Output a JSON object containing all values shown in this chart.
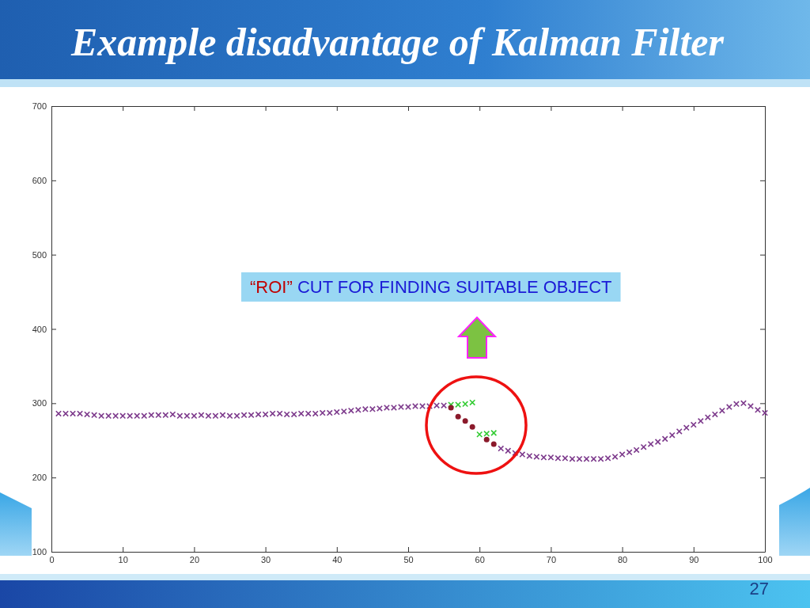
{
  "chart_data": {
    "type": "scatter",
    "title": "Example disadvantage of Kalman Filter",
    "annotations": [
      "“ROI” CUT FOR FINDING SUITABLE OBJECT",
      "27"
    ],
    "xlim": [
      0,
      100
    ],
    "xticks": [
      0,
      10,
      20,
      30,
      40,
      50,
      60,
      70,
      80,
      90,
      100
    ],
    "ylim": [
      100,
      700
    ],
    "yticks": [
      100,
      200,
      300,
      400,
      500,
      600,
      700
    ],
    "marker": "cross",
    "series": [
      {
        "color": "#7d3a8c",
        "x": [
          1,
          2,
          3,
          4,
          5,
          6,
          7,
          8,
          9,
          10,
          11,
          12,
          13,
          14,
          15,
          16,
          17,
          18,
          19,
          20,
          21,
          22,
          23,
          24,
          25,
          26,
          27,
          28,
          29,
          30,
          31,
          32,
          33,
          34,
          35,
          36,
          37,
          38,
          39,
          40,
          41,
          42,
          43,
          44,
          45,
          46,
          47,
          48,
          49,
          50,
          51,
          52,
          53,
          54,
          55,
          63,
          64,
          65,
          66,
          67,
          68,
          69,
          70,
          71,
          72,
          73,
          74,
          75,
          76,
          77,
          78,
          79,
          80,
          81,
          82,
          83,
          84,
          85,
          86,
          87,
          88,
          89,
          90,
          91,
          92,
          93,
          94,
          95,
          96,
          97,
          98,
          99,
          100
        ],
        "values": [
          286,
          286,
          286,
          286,
          285,
          284,
          283,
          283,
          283,
          283,
          283,
          283,
          283,
          284,
          284,
          284,
          285,
          283,
          283,
          283,
          284,
          283,
          283,
          284,
          283,
          283,
          284,
          284,
          285,
          285,
          286,
          286,
          285,
          285,
          286,
          286,
          286,
          287,
          287,
          288,
          289,
          290,
          291,
          292,
          292,
          293,
          294,
          294,
          295,
          295,
          296,
          296,
          296,
          297,
          297,
          239,
          236,
          233,
          231,
          229,
          228,
          227,
          227,
          226,
          226,
          225,
          225,
          225,
          225,
          225,
          226,
          228,
          231,
          234,
          237,
          241,
          245,
          248,
          252,
          257,
          262,
          267,
          271,
          276,
          281,
          285,
          290,
          295,
          299,
          300,
          296,
          291,
          287
        ]
      },
      {
        "color": "#33cc33",
        "x": [
          56,
          57,
          58,
          59,
          60,
          61,
          62
        ],
        "values": [
          298,
          298,
          299,
          301,
          258,
          259,
          260
        ]
      },
      {
        "color": "#8b1a2b",
        "marker": "circle",
        "x": [
          56,
          57,
          58,
          59,
          61,
          62
        ],
        "values": [
          294,
          282,
          276,
          268,
          251,
          245
        ]
      }
    ]
  }
}
